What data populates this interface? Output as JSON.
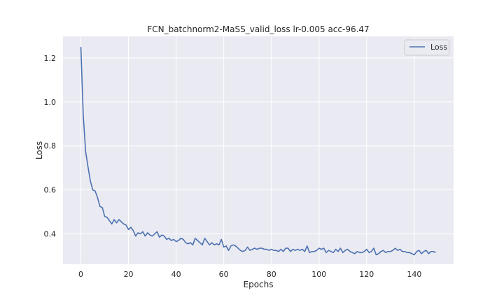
{
  "chart_data": {
    "type": "line",
    "title": "FCN_batchnorm2-MaSS_valid_loss lr-0.005 acc-96.47",
    "xlabel": "Epochs",
    "ylabel": "Loss",
    "xlim": [
      -7.5,
      156.5
    ],
    "ylim": [
      0.262,
      1.298
    ],
    "xticks": [
      0,
      20,
      40,
      60,
      80,
      100,
      120,
      140
    ],
    "yticks": [
      0.4,
      0.6,
      0.8,
      1.0,
      1.2
    ],
    "ytick_labels": [
      "0.4",
      "0.6",
      "0.8",
      "1.0",
      "1.2"
    ],
    "grid": true,
    "legend": {
      "position": "top-right",
      "entries": [
        "Loss"
      ]
    },
    "colors": {
      "line": "#4c72b0",
      "background": "#eaeaf2",
      "grid": "#ffffff"
    },
    "series": [
      {
        "name": "Loss",
        "x": [
          0,
          1,
          2,
          3,
          4,
          5,
          6,
          7,
          8,
          9,
          10,
          11,
          12,
          13,
          14,
          15,
          16,
          17,
          18,
          19,
          20,
          21,
          22,
          23,
          24,
          25,
          26,
          27,
          28,
          29,
          30,
          31,
          32,
          33,
          34,
          35,
          36,
          37,
          38,
          39,
          40,
          41,
          42,
          43,
          44,
          45,
          46,
          47,
          48,
          49,
          50,
          51,
          52,
          53,
          54,
          55,
          56,
          57,
          58,
          59,
          60,
          61,
          62,
          63,
          64,
          65,
          66,
          67,
          68,
          69,
          70,
          71,
          72,
          73,
          74,
          75,
          76,
          77,
          78,
          79,
          80,
          81,
          82,
          83,
          84,
          85,
          86,
          87,
          88,
          89,
          90,
          91,
          92,
          93,
          94,
          95,
          96,
          97,
          98,
          99,
          100,
          101,
          102,
          103,
          104,
          105,
          106,
          107,
          108,
          109,
          110,
          111,
          112,
          113,
          114,
          115,
          116,
          117,
          118,
          119,
          120,
          121,
          122,
          123,
          124,
          125,
          126,
          127,
          128,
          129,
          130,
          131,
          132,
          133,
          134,
          135,
          136,
          137,
          138,
          139,
          140,
          141,
          142,
          143,
          144,
          145,
          146,
          147,
          148,
          149
        ],
        "values": [
          1.25,
          0.94,
          0.775,
          0.705,
          0.64,
          0.6,
          0.595,
          0.565,
          0.525,
          0.52,
          0.48,
          0.475,
          0.46,
          0.445,
          0.465,
          0.45,
          0.465,
          0.455,
          0.445,
          0.44,
          0.42,
          0.43,
          0.415,
          0.39,
          0.405,
          0.4,
          0.41,
          0.39,
          0.405,
          0.395,
          0.39,
          0.4,
          0.41,
          0.385,
          0.395,
          0.39,
          0.375,
          0.38,
          0.37,
          0.375,
          0.365,
          0.37,
          0.38,
          0.375,
          0.36,
          0.355,
          0.36,
          0.35,
          0.38,
          0.37,
          0.36,
          0.35,
          0.38,
          0.365,
          0.35,
          0.36,
          0.35,
          0.355,
          0.35,
          0.375,
          0.34,
          0.345,
          0.325,
          0.345,
          0.35,
          0.345,
          0.335,
          0.325,
          0.32,
          0.325,
          0.34,
          0.325,
          0.33,
          0.335,
          0.33,
          0.335,
          0.335,
          0.33,
          0.33,
          0.325,
          0.33,
          0.325,
          0.325,
          0.32,
          0.33,
          0.32,
          0.335,
          0.335,
          0.32,
          0.33,
          0.325,
          0.33,
          0.325,
          0.33,
          0.32,
          0.345,
          0.315,
          0.32,
          0.32,
          0.325,
          0.335,
          0.33,
          0.335,
          0.315,
          0.325,
          0.32,
          0.315,
          0.33,
          0.32,
          0.335,
          0.315,
          0.325,
          0.33,
          0.32,
          0.315,
          0.31,
          0.32,
          0.315,
          0.315,
          0.32,
          0.33,
          0.315,
          0.32,
          0.335,
          0.305,
          0.31,
          0.32,
          0.325,
          0.315,
          0.32,
          0.32,
          0.325,
          0.335,
          0.325,
          0.33,
          0.32,
          0.32,
          0.315,
          0.315,
          0.31,
          0.305,
          0.32,
          0.325,
          0.31,
          0.32,
          0.325,
          0.31,
          0.32,
          0.32,
          0.315
        ]
      }
    ]
  }
}
